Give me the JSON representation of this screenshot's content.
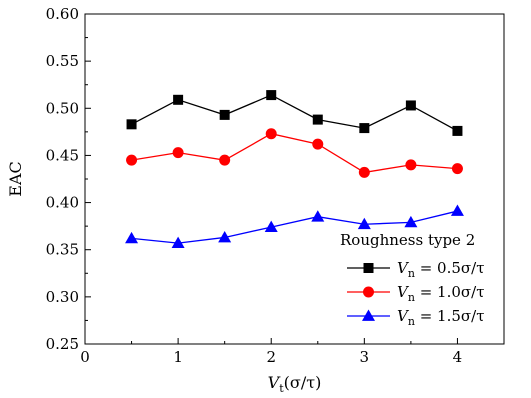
{
  "chart_data": {
    "type": "line",
    "title": "",
    "xlabel": "V_t(σ/τ)",
    "xlabel_main": "V",
    "xlabel_sub": "t",
    "xlabel_rest": "(σ/τ)",
    "ylabel": "EAC",
    "xlim": [
      0,
      4.5
    ],
    "ylim": [
      0.25,
      0.6
    ],
    "xticks": [
      0,
      1,
      2,
      3,
      4
    ],
    "xtick_labels": [
      "0",
      "1",
      "2",
      "3",
      "4"
    ],
    "yticks": [
      0.25,
      0.3,
      0.35,
      0.4,
      0.45,
      0.5,
      0.55,
      0.6
    ],
    "ytick_labels": [
      "0.25",
      "0.30",
      "0.35",
      "0.40",
      "0.45",
      "0.50",
      "0.55",
      "0.60"
    ],
    "grid": false,
    "legend": {
      "title": "Roughness type 2",
      "placement": "bottom-right"
    },
    "x": [
      0.5,
      1.0,
      1.5,
      2.0,
      2.5,
      3.0,
      3.5,
      4.0
    ],
    "series": [
      {
        "name": "V_n = 0.5σ/τ",
        "label_main": "V",
        "label_sub": "n",
        "label_rest": " = 0.5σ/τ",
        "marker": "square",
        "color": "#000000",
        "values": [
          0.483,
          0.509,
          0.493,
          0.514,
          0.488,
          0.479,
          0.503,
          0.476
        ]
      },
      {
        "name": "V_n = 1.0σ/τ",
        "label_main": "V",
        "label_sub": "n",
        "label_rest": " = 1.0σ/τ",
        "marker": "circle",
        "color": "#ff0000",
        "values": [
          0.445,
          0.453,
          0.445,
          0.473,
          0.462,
          0.432,
          0.44,
          0.436
        ]
      },
      {
        "name": "V_n = 1.5σ/τ",
        "label_main": "V",
        "label_sub": "n",
        "label_rest": " = 1.5σ/τ",
        "marker": "triangle",
        "color": "#0000ff",
        "values": [
          0.362,
          0.357,
          0.363,
          0.374,
          0.385,
          0.377,
          0.379,
          0.391
        ]
      }
    ]
  }
}
